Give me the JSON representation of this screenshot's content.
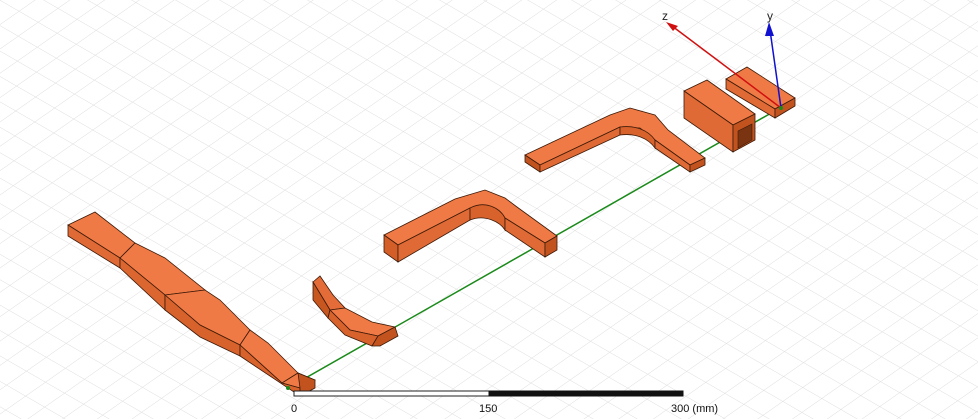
{
  "axes": {
    "x_label": "",
    "y_label": "y",
    "z_label": "z"
  },
  "scale_bar": {
    "tick_0": "0",
    "tick_1": "150",
    "tick_2": "300 (mm)"
  },
  "colors": {
    "solid_face_light": "#f07a45",
    "solid_face_mid": "#e26a35",
    "solid_face_dark": "#c2531f",
    "edge": "#3d1a08",
    "grid_line": "#d9d9d9",
    "axis_x": "#1a8a1a",
    "axis_y": "#1010d0",
    "axis_z": "#d01010"
  },
  "scene": {
    "objects": [
      "tapered-waveguide",
      "twisted-waveguide",
      "e-bend-waveguide",
      "h-bend-waveguide",
      "rectangular-waveguide-section",
      "square-waveguide-section"
    ]
  }
}
